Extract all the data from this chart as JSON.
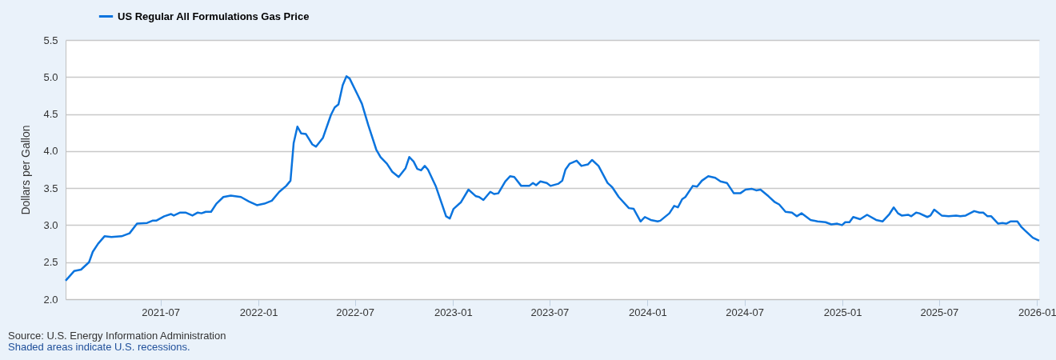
{
  "chart_data": {
    "type": "line",
    "ylabel": "Dollars per Gallon",
    "annotations": [
      "Source: U.S. Energy Information Administration",
      "Shaded areas indicate U.S. recessions."
    ],
    "x": [
      "2021-01-04",
      "2021-01-20",
      "2021-02-02",
      "2021-02-17",
      "2021-02-24",
      "2021-03-06",
      "2021-03-18",
      "2021-03-31",
      "2021-04-19",
      "2021-05-04",
      "2021-05-18",
      "2021-06-06",
      "2021-06-16",
      "2021-06-23",
      "2021-07-08",
      "2021-07-21",
      "2021-07-26",
      "2021-08-07",
      "2021-08-17",
      "2021-08-30",
      "2021-09-09",
      "2021-09-16",
      "2021-09-24",
      "2021-10-04",
      "2021-10-14",
      "2021-10-27",
      "2021-11-10",
      "2021-11-29",
      "2021-12-14",
      "2021-12-29",
      "2022-01-12",
      "2022-01-26",
      "2022-02-09",
      "2022-02-22",
      "2022-03-02",
      "2022-03-08",
      "2022-03-15",
      "2022-03-22",
      "2022-03-31",
      "2022-04-12",
      "2022-04-19",
      "2022-05-02",
      "2022-05-17",
      "2022-05-24",
      "2022-05-31",
      "2022-06-08",
      "2022-06-15",
      "2022-06-21",
      "2022-07-06",
      "2022-07-14",
      "2022-07-26",
      "2022-08-10",
      "2022-08-18",
      "2022-08-30",
      "2022-09-09",
      "2022-09-21",
      "2022-10-04",
      "2022-10-11",
      "2022-10-19",
      "2022-10-26",
      "2022-11-02",
      "2022-11-09",
      "2022-11-15",
      "2022-11-30",
      "2022-12-19",
      "2022-12-26",
      "2023-01-02",
      "2023-01-16",
      "2023-01-30",
      "2023-02-13",
      "2023-02-19",
      "2023-02-27",
      "2023-03-12",
      "2023-03-19",
      "2023-03-27",
      "2023-04-09",
      "2023-04-18",
      "2023-04-26",
      "2023-05-09",
      "2023-05-24",
      "2023-05-31",
      "2023-06-06",
      "2023-06-14",
      "2023-06-26",
      "2023-07-03",
      "2023-07-18",
      "2023-07-25",
      "2023-07-31",
      "2023-08-08",
      "2023-08-21",
      "2023-08-30",
      "2023-09-11",
      "2023-09-19",
      "2023-10-01",
      "2023-10-18",
      "2023-10-27",
      "2023-11-08",
      "2023-11-27",
      "2023-12-06",
      "2023-12-19",
      "2023-12-27",
      "2024-01-07",
      "2024-01-20",
      "2024-01-25",
      "2024-02-11",
      "2024-02-20",
      "2024-02-27",
      "2024-03-06",
      "2024-03-12",
      "2024-03-26",
      "2024-04-03",
      "2024-04-12",
      "2024-04-24",
      "2024-05-07",
      "2024-05-17",
      "2024-05-29",
      "2024-06-11",
      "2024-06-23",
      "2024-07-03",
      "2024-07-15",
      "2024-07-23",
      "2024-07-31",
      "2024-08-15",
      "2024-08-27",
      "2024-09-04",
      "2024-09-16",
      "2024-09-28",
      "2024-10-07",
      "2024-10-16",
      "2024-11-02",
      "2024-11-15",
      "2024-11-30",
      "2024-12-11",
      "2024-12-22",
      "2024-12-31",
      "2025-01-06",
      "2025-01-14",
      "2025-01-21",
      "2025-02-03",
      "2025-02-16",
      "2025-03-05",
      "2025-03-17",
      "2025-03-30",
      "2025-04-07",
      "2025-04-15",
      "2025-04-22",
      "2025-05-04",
      "2025-05-10",
      "2025-05-19",
      "2025-05-25",
      "2025-06-09",
      "2025-06-15",
      "2025-06-22",
      "2025-07-06",
      "2025-07-19",
      "2025-08-02",
      "2025-08-10",
      "2025-08-20",
      "2025-09-05",
      "2025-09-15",
      "2025-09-22",
      "2025-09-30",
      "2025-10-07",
      "2025-10-20",
      "2025-10-28",
      "2025-11-04",
      "2025-11-12",
      "2025-11-25",
      "2025-12-02",
      "2025-12-09",
      "2025-12-24",
      "2026-01-05"
    ],
    "series": [
      {
        "name": "US Regular All Formulations Gas Price",
        "color": "#0b74de",
        "values": [
          2.25,
          2.38,
          2.4,
          2.5,
          2.64,
          2.75,
          2.85,
          2.84,
          2.85,
          2.89,
          3.02,
          3.03,
          3.06,
          3.06,
          3.12,
          3.15,
          3.13,
          3.17,
          3.17,
          3.13,
          3.17,
          3.16,
          3.18,
          3.18,
          3.29,
          3.38,
          3.4,
          3.38,
          3.32,
          3.27,
          3.29,
          3.33,
          3.45,
          3.53,
          3.6,
          4.11,
          4.33,
          4.24,
          4.23,
          4.09,
          4.06,
          4.18,
          4.49,
          4.59,
          4.63,
          4.89,
          5.01,
          4.98,
          4.76,
          4.64,
          4.35,
          4.02,
          3.92,
          3.83,
          3.72,
          3.65,
          3.77,
          3.92,
          3.86,
          3.76,
          3.74,
          3.8,
          3.75,
          3.52,
          3.12,
          3.09,
          3.22,
          3.31,
          3.48,
          3.39,
          3.38,
          3.34,
          3.45,
          3.42,
          3.43,
          3.59,
          3.66,
          3.65,
          3.53,
          3.53,
          3.57,
          3.54,
          3.59,
          3.57,
          3.53,
          3.56,
          3.6,
          3.75,
          3.83,
          3.87,
          3.8,
          3.82,
          3.88,
          3.8,
          3.57,
          3.51,
          3.38,
          3.23,
          3.22,
          3.05,
          3.11,
          3.07,
          3.05,
          3.06,
          3.16,
          3.26,
          3.24,
          3.35,
          3.38,
          3.53,
          3.52,
          3.6,
          3.66,
          3.64,
          3.59,
          3.57,
          3.43,
          3.43,
          3.48,
          3.49,
          3.47,
          3.48,
          3.39,
          3.31,
          3.28,
          3.18,
          3.17,
          3.12,
          3.16,
          3.07,
          3.05,
          3.04,
          3.01,
          3.02,
          3.0,
          3.04,
          3.04,
          3.11,
          3.08,
          3.14,
          3.07,
          3.05,
          3.15,
          3.24,
          3.16,
          3.13,
          3.14,
          3.12,
          3.17,
          3.16,
          3.11,
          3.13,
          3.21,
          3.13,
          3.12,
          3.13,
          3.12,
          3.13,
          3.19,
          3.17,
          3.17,
          3.12,
          3.12,
          3.02,
          3.03,
          3.02,
          3.05,
          3.05,
          2.98,
          2.93,
          2.83,
          2.79
        ]
      }
    ],
    "xlim": [
      "2021-01-04",
      "2026-01-05"
    ],
    "xticks": [
      "2021-07",
      "2022-01",
      "2022-07",
      "2023-01",
      "2023-07",
      "2024-01",
      "2024-07",
      "2025-01",
      "2025-07",
      "2026-01"
    ],
    "ylim": [
      2.0,
      5.5
    ],
    "yticks": [
      {
        "value": 2,
        "label": "2.0"
      },
      2.5,
      {
        "value": 3,
        "label": "3.0"
      },
      3.5,
      {
        "value": 4,
        "label": "4.0"
      },
      4.5,
      {
        "value": 5,
        "label": "5.0"
      },
      5.5
    ],
    "grid": "y",
    "legend": "top left",
    "line_style": "solid",
    "marker": "none"
  }
}
